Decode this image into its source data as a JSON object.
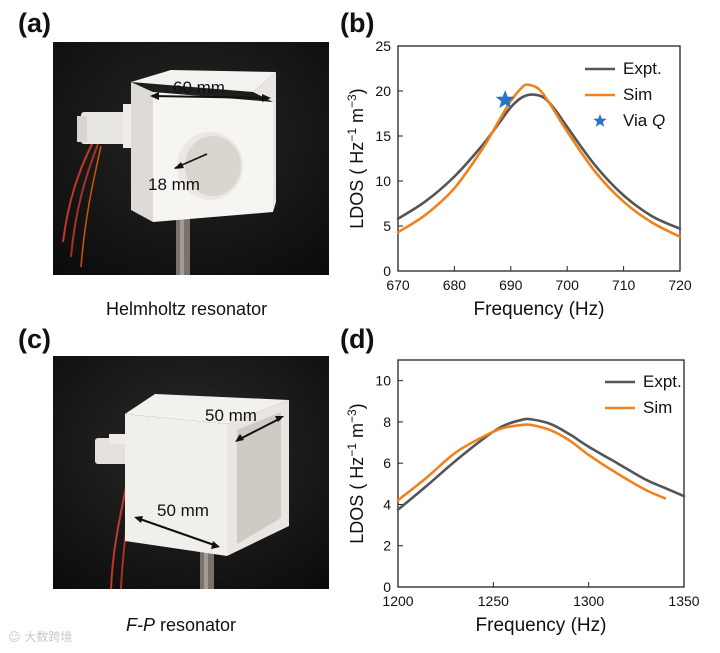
{
  "figure": {
    "panel_labels": [
      "(a)",
      "(b)",
      "(c)",
      "(d)"
    ],
    "photo_a": {
      "caption": "Helmholtz resonator",
      "dim_width": "60 mm",
      "dim_hole": "18 mm"
    },
    "photo_c": {
      "caption_italic": "F-P",
      "caption_rest": " resonator",
      "dim_depth": "50 mm",
      "dim_width": "50 mm"
    },
    "watermark": "大数跨境"
  },
  "colors": {
    "expt": "#555555",
    "sim": "#f0821e",
    "star": "#2a72c8"
  },
  "chart_data": [
    {
      "type": "line",
      "panel": "(b)",
      "xlabel": "Frequency (Hz)",
      "ylabel_parts": [
        "LDOS ( Hz",
        "−1",
        " m",
        "−3",
        ")"
      ],
      "xlim": [
        670,
        720
      ],
      "ylim": [
        0,
        25
      ],
      "xticks": [
        670,
        680,
        690,
        700,
        710,
        720
      ],
      "yticks": [
        0,
        5,
        10,
        15,
        20,
        25
      ],
      "legend_position": "top-right",
      "series": [
        {
          "name": "Expt.",
          "x": [
            670,
            675,
            680,
            685,
            688,
            690,
            692,
            694,
            696,
            698,
            700,
            705,
            710,
            715,
            720
          ],
          "y": [
            5.8,
            7.8,
            10.5,
            14.0,
            16.5,
            18.2,
            19.3,
            19.6,
            19.2,
            17.8,
            16.0,
            11.7,
            8.4,
            6.1,
            4.7
          ]
        },
        {
          "name": "Sim",
          "x": [
            670,
            675,
            680,
            685,
            688,
            690,
            692,
            693,
            695,
            697,
            700,
            705,
            710,
            715,
            720
          ],
          "y": [
            4.3,
            6.3,
            9.2,
            13.6,
            16.8,
            18.9,
            20.4,
            20.7,
            20.2,
            18.5,
            15.5,
            11.0,
            7.7,
            5.4,
            3.8
          ]
        }
      ],
      "points": [
        {
          "name": "Via Q",
          "x": 689,
          "y": 19.0
        }
      ],
      "legend": [
        {
          "text": "Expt.",
          "kind": "line-expt"
        },
        {
          "text": "Sim",
          "kind": "line-sim"
        },
        {
          "text": "Via ",
          "text_italic": "Q",
          "kind": "star"
        }
      ]
    },
    {
      "type": "line",
      "panel": "(d)",
      "xlabel": "Frequency (Hz)",
      "ylabel_parts": [
        "LDOS ( Hz",
        "−1",
        " m",
        "−3",
        ")"
      ],
      "xlim": [
        1200,
        1350
      ],
      "ylim": [
        0,
        11
      ],
      "xticks": [
        1200,
        1250,
        1300,
        1350
      ],
      "yticks": [
        0,
        2,
        4,
        6,
        8,
        10
      ],
      "legend_position": "top-right",
      "series": [
        {
          "name": "Expt.",
          "x": [
            1200,
            1215,
            1230,
            1245,
            1255,
            1265,
            1270,
            1280,
            1290,
            1300,
            1315,
            1330,
            1340,
            1350
          ],
          "y": [
            3.75,
            4.9,
            6.1,
            7.2,
            7.8,
            8.1,
            8.12,
            7.9,
            7.4,
            6.8,
            6.0,
            5.2,
            4.8,
            4.4
          ]
        },
        {
          "name": "Sim",
          "x": [
            1200,
            1215,
            1230,
            1245,
            1255,
            1265,
            1270,
            1280,
            1290,
            1300,
            1315,
            1330,
            1340
          ],
          "y": [
            4.2,
            5.3,
            6.5,
            7.3,
            7.7,
            7.85,
            7.85,
            7.6,
            7.1,
            6.4,
            5.5,
            4.7,
            4.3
          ]
        }
      ],
      "legend": [
        {
          "text": "Expt.",
          "kind": "line-expt"
        },
        {
          "text": "Sim",
          "kind": "line-sim"
        }
      ]
    }
  ]
}
